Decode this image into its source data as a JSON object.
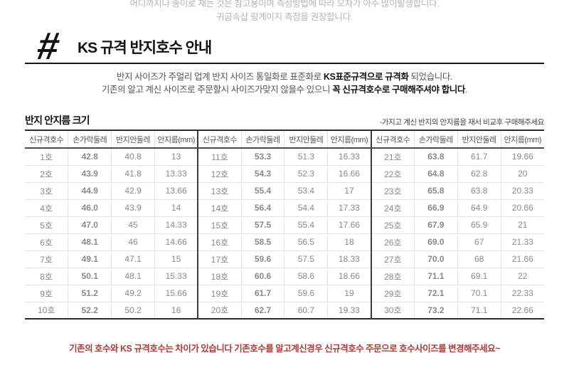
{
  "top_note": {
    "line1": "어디까지나 종이로 재는 것은 참고용이며 측정방법에 따라 오차가 아주 많이발생합니다.",
    "line2": "귀금속샵 링게이지 측정을 권장합니다."
  },
  "header": {
    "hash": "#",
    "title": "KS 규격 반지호수 안내"
  },
  "intro": {
    "l1a": "반지 사이즈가 주얼리 업계 반지 사이즈 통일화로 표준화로 ",
    "l1b": "KS표준규격으로 규격화",
    "l1c": " 되었습니다.",
    "l2a": "기존의 알고 계신 사이즈로 주문할시 사이즈가맞지 않을수 있으니 ",
    "l2b": "꼭 신규격호수로 구매해주셔야 합니다",
    "l2c": "."
  },
  "table": {
    "title": "반지 안지름 크기",
    "note": "-가지고 계신 반지의 안지름을 재서 비교후 구매해주세요",
    "headers": [
      "신규격호수",
      "손가락둘레",
      "반지안둘레",
      "안지름(mm)"
    ],
    "groups": [
      {
        "rows": [
          [
            "1호",
            "42.8",
            "40.8",
            "13"
          ],
          [
            "2호",
            "43.9",
            "41.8",
            "13.33"
          ],
          [
            "3호",
            "44.9",
            "42.9",
            "13.66"
          ],
          [
            "4호",
            "46.0",
            "43.9",
            "14"
          ],
          [
            "5호",
            "47.0",
            "45",
            "14.33"
          ],
          [
            "6호",
            "48.1",
            "46",
            "14.66"
          ],
          [
            "7호",
            "49.1",
            "47.1",
            "15"
          ],
          [
            "8호",
            "50.1",
            "48.1",
            "15.33"
          ],
          [
            "9호",
            "51.2",
            "49.2",
            "15.66"
          ],
          [
            "10호",
            "52.2",
            "50.2",
            "16"
          ]
        ]
      },
      {
        "rows": [
          [
            "11호",
            "53.3",
            "51.3",
            "16.33"
          ],
          [
            "12호",
            "54.3",
            "52.3",
            "16.66"
          ],
          [
            "13호",
            "55.4",
            "53.4",
            "17"
          ],
          [
            "14호",
            "56.4",
            "54.4",
            "17.33"
          ],
          [
            "15호",
            "57.5",
            "55.4",
            "17.66"
          ],
          [
            "16호",
            "58.5",
            "56.5",
            "18"
          ],
          [
            "17호",
            "59.6",
            "57.5",
            "18.33"
          ],
          [
            "18호",
            "60.6",
            "58.6",
            "18.66"
          ],
          [
            "19호",
            "61.7",
            "59.6",
            "19"
          ],
          [
            "20호",
            "62.7",
            "60.7",
            "19.33"
          ]
        ]
      },
      {
        "rows": [
          [
            "21호",
            "63.8",
            "61.7",
            "19.66"
          ],
          [
            "22호",
            "64.8",
            "62.8",
            "20"
          ],
          [
            "23호",
            "65.8",
            "63.8",
            "20.33"
          ],
          [
            "24호",
            "66.9",
            "64.9",
            "20.66"
          ],
          [
            "25호",
            "67.9",
            "65.9",
            "21"
          ],
          [
            "26호",
            "69.0",
            "67",
            "21.33"
          ],
          [
            "27호",
            "70.0",
            "68",
            "21.66"
          ],
          [
            "28호",
            "71.1",
            "69.1",
            "22"
          ],
          [
            "29호",
            "72.1",
            "70.1",
            "22.33"
          ],
          [
            "30호",
            "73.2",
            "71.1",
            "22.66"
          ]
        ]
      }
    ]
  },
  "footer": {
    "warning": "기존의 호수와 KS 규격호수는 차이가 있습니다 기존호수를 알고계신경우 신규격호수 주문으로 호수사이즈를 변경해주세요~"
  },
  "colors": {
    "warning_red": "#b03a3a",
    "muted_gray": "#b4b4b4",
    "text_dark": "#111111",
    "cell_gray": "#8a8a8a"
  }
}
